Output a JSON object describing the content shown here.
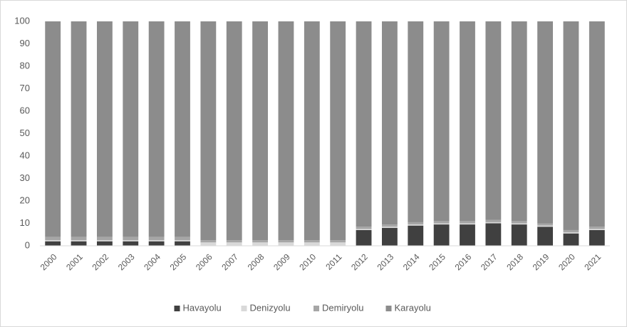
{
  "chart_data": {
    "type": "stacked_bar",
    "categories": [
      "2000",
      "2001",
      "2002",
      "2003",
      "2004",
      "2005",
      "2006",
      "2007",
      "2008",
      "2009",
      "2010",
      "2011",
      "2012",
      "2013",
      "2014",
      "2015",
      "2016",
      "2017",
      "2018",
      "2019",
      "2020",
      "2021"
    ],
    "series": [
      {
        "name": "Havayolu",
        "color": "#404040",
        "values": [
          2,
          2,
          2,
          2,
          2,
          2,
          0,
          0,
          0,
          0,
          0,
          0,
          7,
          8,
          9,
          9.5,
          9.5,
          10,
          9.5,
          8.5,
          5.5,
          7
        ]
      },
      {
        "name": "Denizyolu",
        "color": "#d9d9d9",
        "values": [
          0.5,
          0.5,
          0.5,
          0.5,
          0.5,
          0.5,
          1.5,
          1.5,
          1.5,
          1.5,
          1.5,
          1.5,
          0.5,
          0.5,
          0.5,
          0.5,
          0.5,
          0.5,
          0.5,
          0.5,
          0.5,
          0.5
        ]
      },
      {
        "name": "Demiryolu",
        "color": "#a6a6a6",
        "values": [
          1.5,
          1.5,
          1.5,
          1.5,
          1.5,
          1.5,
          1,
          1,
          1,
          1,
          1,
          1,
          1,
          1,
          1,
          1,
          1,
          1,
          1,
          1,
          1,
          1
        ]
      },
      {
        "name": "Karayolu",
        "color": "#8c8c8c",
        "values": [
          96,
          96,
          96,
          96,
          96,
          96,
          97.5,
          97.5,
          97.5,
          97.5,
          97.5,
          97.5,
          91.5,
          90.5,
          89.5,
          89,
          89,
          88.5,
          89,
          90,
          93,
          91.5
        ]
      }
    ],
    "ylim": [
      0,
      100
    ],
    "yticks": [
      0,
      10,
      20,
      30,
      40,
      50,
      60,
      70,
      80,
      90,
      100
    ],
    "grid": false,
    "legend": "bottom"
  }
}
